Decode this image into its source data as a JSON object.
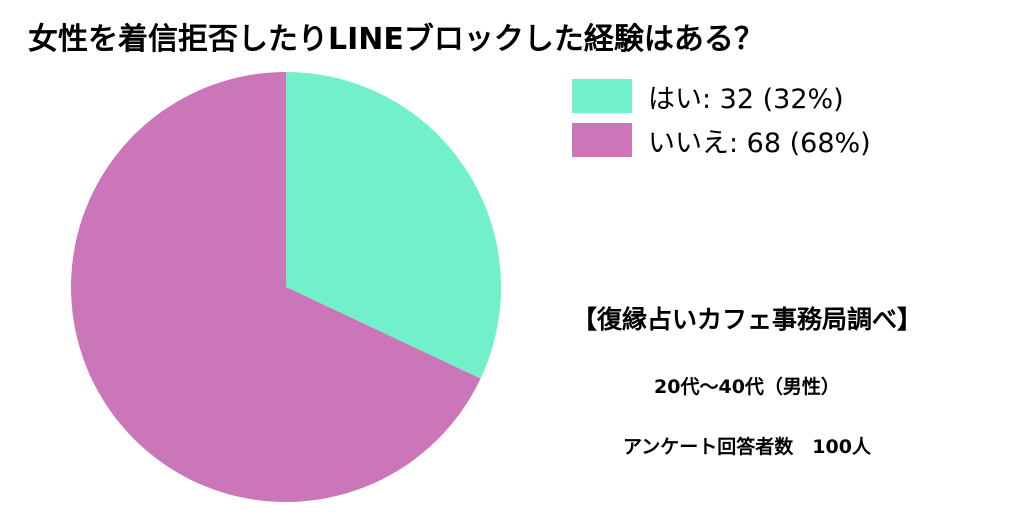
{
  "chart_data": {
    "type": "pie",
    "title": "女性を着信拒否したりLINEブロックした経験はある？",
    "categories": [
      "はい",
      "いいえ"
    ],
    "values": [
      32,
      68
    ],
    "percentages": [
      32,
      68
    ],
    "colors": [
      "#72f0c9",
      "#cb76b8"
    ],
    "legend_labels": [
      "はい: 32 (32%)",
      "いいえ: 68 (68%)"
    ],
    "legend_position": "top-right"
  },
  "annotations": {
    "source": "【復縁占いカフェ事務局調べ】",
    "demographic": "20代〜40代（男性）",
    "respondents": "アンケート回答者数　100人"
  }
}
